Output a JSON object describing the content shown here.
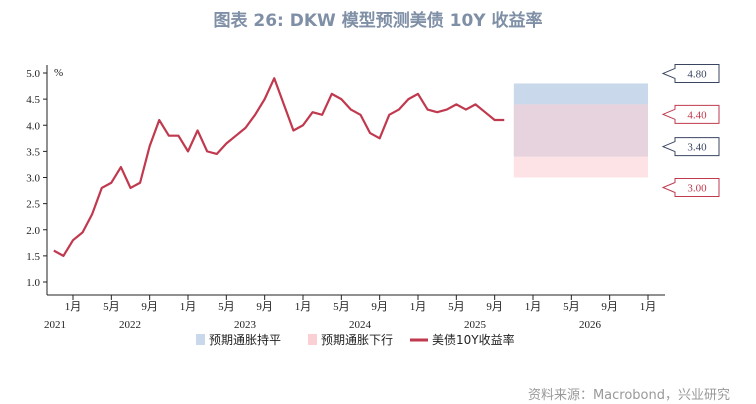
{
  "title": "图表 26: DKW 模型预测美债 10Y 收益率",
  "source": "资料来源：Macrobond，兴业研究",
  "chart_data": {
    "type": "line",
    "ylabel": "%",
    "ylim": [
      0.8,
      5.2
    ],
    "yticks": [
      "1.0",
      "1.5",
      "2.0",
      "2.5",
      "3.0",
      "3.5",
      "4.0",
      "4.5",
      "5.0"
    ],
    "xticks": [
      {
        "label": "1月",
        "date": "2022-01"
      },
      {
        "label": "5月",
        "date": "2022-05"
      },
      {
        "label": "9月",
        "date": "2022-09"
      },
      {
        "label": "1月",
        "date": "2023-01"
      },
      {
        "label": "5月",
        "date": "2023-05"
      },
      {
        "label": "9月",
        "date": "2023-09"
      },
      {
        "label": "1月",
        "date": "2024-01"
      },
      {
        "label": "5月",
        "date": "2024-05"
      },
      {
        "label": "9月",
        "date": "2024-09"
      },
      {
        "label": "1月",
        "date": "2025-01"
      },
      {
        "label": "5月",
        "date": "2025-05"
      },
      {
        "label": "9月",
        "date": "2025-09"
      },
      {
        "label": "1月",
        "date": "2026-01"
      },
      {
        "label": "5月",
        "date": "2026-05"
      },
      {
        "label": "9月",
        "date": "2026-09"
      },
      {
        "label": "1月",
        "date": "2027-01"
      }
    ],
    "years": [
      "2021",
      "2022",
      "2023",
      "2024",
      "2025",
      "2026"
    ],
    "series": [
      {
        "name": "美债10Y收益率",
        "color": "#c0394e",
        "x": [
          "2021-11",
          "2021-12",
          "2022-01",
          "2022-02",
          "2022-03",
          "2022-04",
          "2022-05",
          "2022-06",
          "2022-07",
          "2022-08",
          "2022-09",
          "2022-10",
          "2022-11",
          "2022-12",
          "2023-01",
          "2023-02",
          "2023-03",
          "2023-04",
          "2023-05",
          "2023-06",
          "2023-07",
          "2023-08",
          "2023-09",
          "2023-10",
          "2023-11",
          "2023-12",
          "2024-01",
          "2024-02",
          "2024-03",
          "2024-04",
          "2024-05",
          "2024-06",
          "2024-07",
          "2024-08",
          "2024-09",
          "2024-10",
          "2024-11",
          "2024-12",
          "2025-01",
          "2025-02",
          "2025-03",
          "2025-04",
          "2025-05",
          "2025-06",
          "2025-07",
          "2025-08",
          "2025-09",
          "2025-10"
        ],
        "values": [
          1.6,
          1.5,
          1.8,
          1.95,
          2.3,
          2.8,
          2.9,
          3.2,
          2.8,
          2.9,
          3.6,
          4.1,
          3.8,
          3.8,
          3.5,
          3.9,
          3.5,
          3.45,
          3.65,
          3.8,
          3.95,
          4.2,
          4.5,
          4.9,
          4.4,
          3.9,
          4.0,
          4.25,
          4.2,
          4.6,
          4.5,
          4.3,
          4.2,
          3.85,
          3.75,
          4.2,
          4.3,
          4.5,
          4.6,
          4.3,
          4.25,
          4.3,
          4.4,
          4.3,
          4.4,
          4.25,
          4.1,
          4.1
        ]
      }
    ],
    "ranges": [
      {
        "name": "预期通胀持平",
        "low": 3.4,
        "high": 4.8,
        "low_label": "3.40",
        "high_label": "4.80",
        "color": "#c9d8ea",
        "label_color": "#3a4660",
        "from": "2025-11",
        "to": "2027-01"
      },
      {
        "name": "预期通胀下行",
        "low": 3.0,
        "high": 4.4,
        "low_label": "3.00",
        "high_label": "4.40",
        "color": "#fbd0d5",
        "label_color": "#c0394e",
        "from": "2025-11",
        "to": "2027-01"
      }
    ],
    "legend_position": "bottom"
  }
}
